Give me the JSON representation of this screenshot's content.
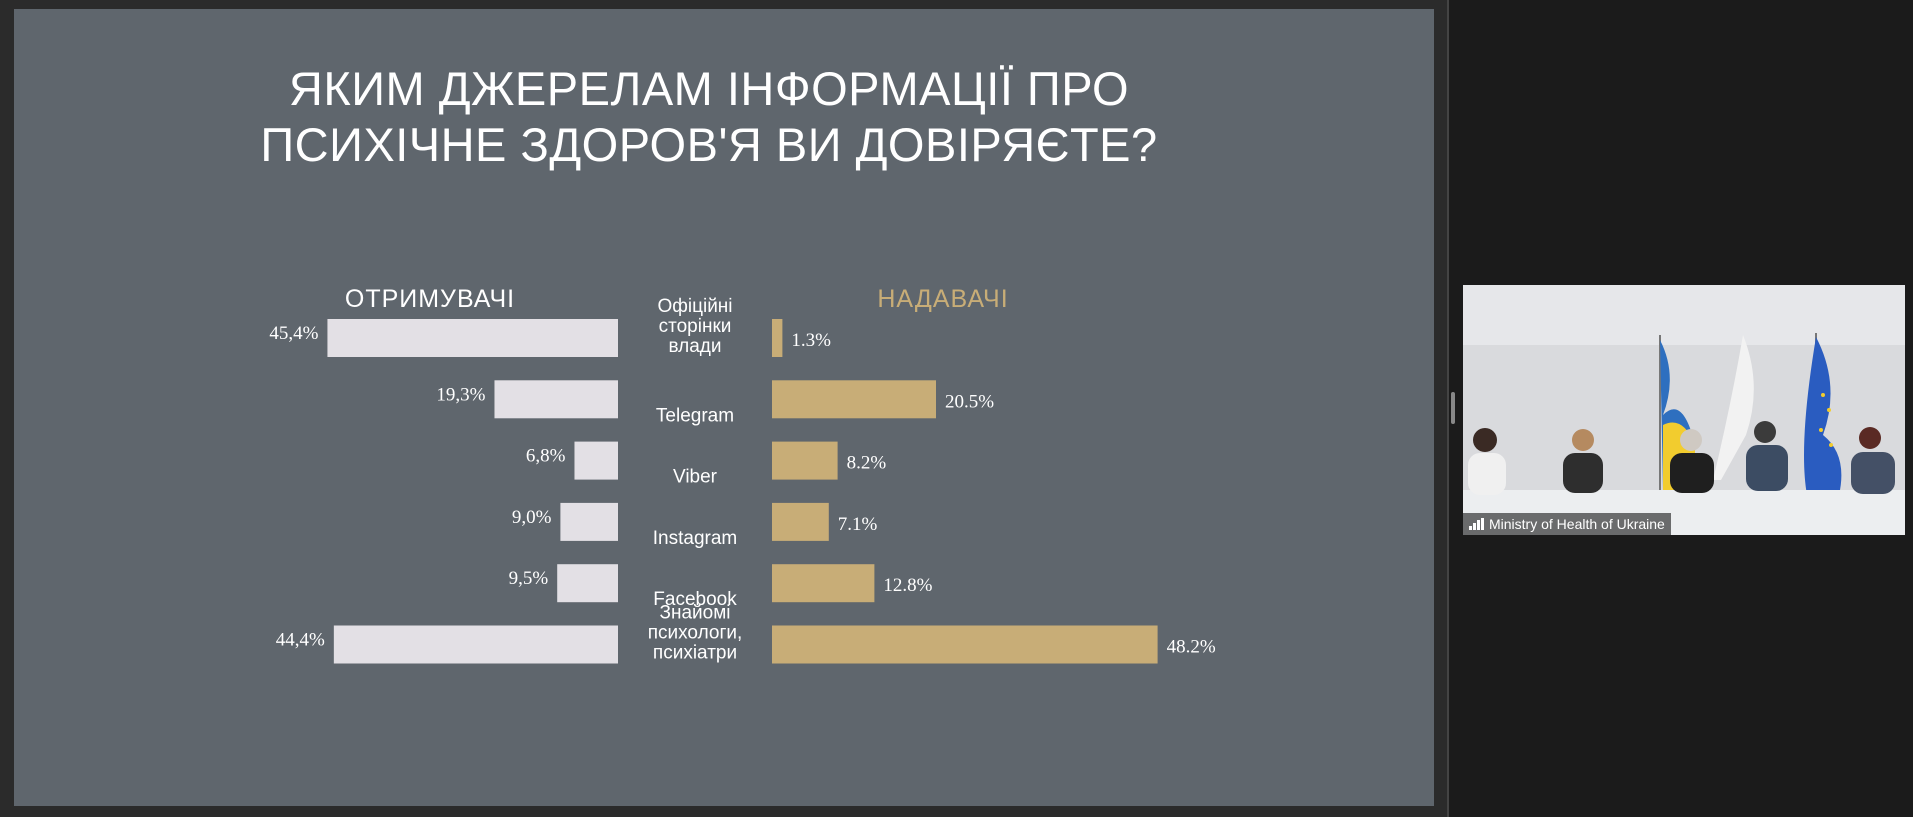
{
  "slide": {
    "title": "ЯКИМ ДЖЕРЕЛАМ ІНФОРМАЦІЇ ПРО\nПСИХІЧНЕ ЗДОРОВ'Я ВИ ДОВІРЯЄТЕ?",
    "left_heading": "ОТРИМУВАЧІ",
    "right_heading": "НАДАВАЧІ"
  },
  "chart_data": {
    "type": "bar",
    "title": "ЯКИМ ДЖЕРЕЛАМ ІНФОРМАЦІЇ ПРО ПСИХІЧНЕ ЗДОРОВ'Я ВИ ДОВІРЯЄТЕ?",
    "categories": [
      [
        "Офіційні",
        "сторінки",
        "влади"
      ],
      [
        "Telegram"
      ],
      [
        "Viber"
      ],
      [
        "Instagram"
      ],
      [
        "Facebook"
      ],
      [
        "Знайомі",
        "психологи,",
        "психіатри"
      ]
    ],
    "series": [
      {
        "name": "ОТРИМУВАЧІ",
        "values": [
          45.4,
          19.3,
          6.8,
          9.0,
          9.5,
          44.4
        ],
        "labels": [
          "45,4%",
          "19,3%",
          "6,8%",
          "9,0%",
          "9,5%",
          "44,4%"
        ],
        "color": "#e3e0e5"
      },
      {
        "name": "НАДАВАЧІ",
        "values": [
          1.3,
          20.5,
          8.2,
          7.1,
          12.8,
          48.2
        ],
        "labels": [
          "1.3%",
          "20.5%",
          "8.2%",
          "7.1%",
          "12.8%",
          "48.2%"
        ],
        "color": "#c8ad77"
      }
    ],
    "layout_note": "diverging bars from centre labels",
    "grid": false
  },
  "video": {
    "participant_name": "Ministry of Health of Ukraine",
    "icon": "signal-strength-icon"
  },
  "colors": {
    "slide_bg": "#5f666d",
    "left_bar": "#e3e0e5",
    "right_bar": "#c8ad77"
  }
}
